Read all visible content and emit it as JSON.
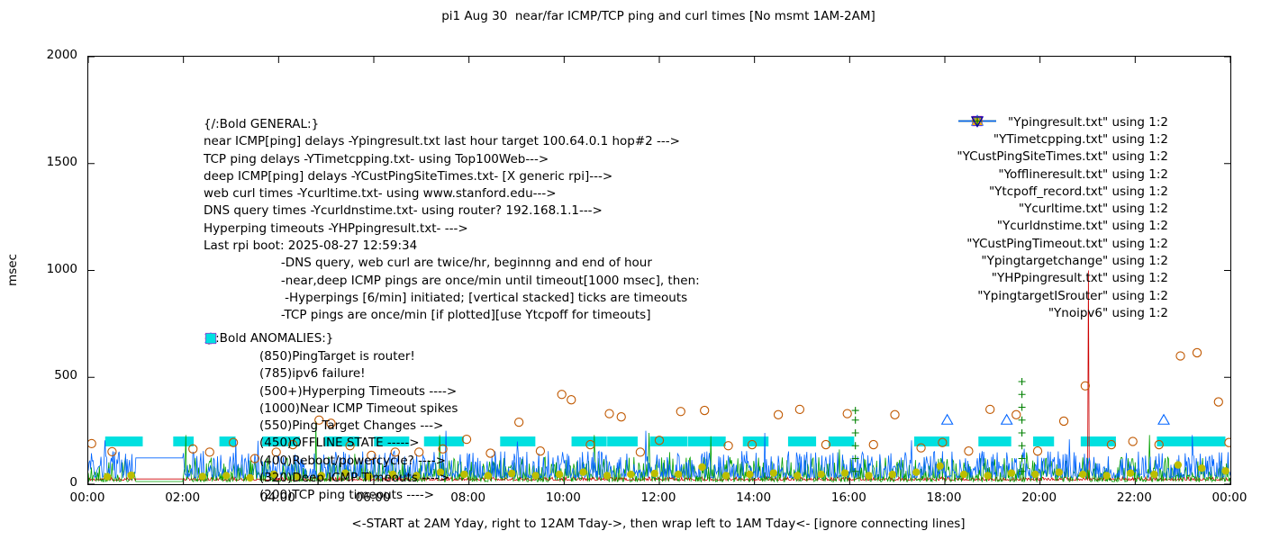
{
  "title": "pi1 Aug 30  near/far ICMP/TCP ping and curl times [No msmt 1AM-2AM]",
  "ylabel": "msec",
  "xlabel": "<-START at 2AM Yday, right to 12AM Tday->, then wrap left to 1AM Tday<- [ignore connecting lines]",
  "general_lines": [
    "{/:Bold GENERAL:}",
    "near ICMP[ping] delays -Ypingresult.txt last hour target 100.64.0.1 hop#2 --->",
    "TCP ping delays -YTimetcpping.txt- using Top100Web--->",
    "deep ICMP[ping] delays -YCustPingSiteTimes.txt- [X generic rpi]--->",
    "web curl times -Ycurltime.txt- using www.stanford.edu--->",
    "DNS query times -Ycurldnstime.txt- using router? 192.168.1.1--->",
    "Hyperping timeouts -YHPpingresult.txt- --->",
    "Last rpi boot: 2025-08-27 12:59:34",
    "                    -DNS query, web curl are twice/hr, beginnng and end of hour",
    "                    -near,deep ICMP pings are once/min until timeout[1000 msec], then:",
    "                     -Hyperpings [6/min] initiated; [vertical stacked] ticks are timeouts",
    "                    -TCP pings are once/min [if plotted][use Ytcpoff for timeouts]"
  ],
  "anomalies_title": "{/:Bold ANOMALIES:}",
  "anomalies": [
    {
      "marker": "triangle-down-open",
      "color": "#c47aff",
      "label": "(850)PingTarget is router!"
    },
    {
      "marker": "triangle-down-open",
      "color": "#0000a0",
      "label": "(785)ipv6 failure!"
    },
    {
      "marker": "plus",
      "color": "#008000",
      "label": "(500+)Hyperping Timeouts ---->"
    },
    {
      "marker": "none",
      "color": "#000000",
      "label": "(1000)Near ICMP Timeout spikes"
    },
    {
      "marker": "triangle-up-filled",
      "color": "#ffa800",
      "label": "(550)Ping Target Changes --->"
    },
    {
      "marker": "square-open",
      "color": "#cc00cc",
      "label": "(450)OFFLINE STATE ----->"
    },
    {
      "marker": "triangle-up-open",
      "color": "#555555",
      "label": "(400)Reboot/powercycle? ---->"
    },
    {
      "marker": "triangle-up-open",
      "color": "#0064ff",
      "label": "(320)Deep ICMP Timeouts ---->"
    },
    {
      "marker": "square-filled",
      "color": "#00e0e0",
      "label": "(200)TCP ping timeouts ---->"
    }
  ],
  "legend": [
    {
      "label": "\"Ypingresult.txt\" using 1:2",
      "sample": "line",
      "color": "#cc0000"
    },
    {
      "label": "\"YTimetcpping.txt\" using 1:2",
      "sample": "line",
      "color": "#00a000"
    },
    {
      "label": "\"YCustPingSiteTimes.txt\" using 1:2",
      "sample": "line",
      "color": "#0064ff"
    },
    {
      "label": "\"Yofflineresult.txt\" using 1:2",
      "sample": "square-open",
      "color": "#cc00cc"
    },
    {
      "label": "\"Ytcpoff_record.txt\" using 1:2",
      "sample": "square-filled",
      "color": "#00e0e0"
    },
    {
      "label": "\"Ycurltime.txt\" using 1:2",
      "sample": "circle-open",
      "color": "#c05800"
    },
    {
      "label": "\"Ycurldnstime.txt\" using 1:2",
      "sample": "circle-filled",
      "color": "#bcbe00"
    },
    {
      "label": "\"YCustPingTimeout.txt\" using 1:2",
      "sample": "triangle-up-open",
      "color": "#0064ff"
    },
    {
      "label": "\"Ypingtargetchange\" using 1:2",
      "sample": "triangle-up-filled",
      "color": "#ffa800"
    },
    {
      "label": "\"YHPpingresult.txt\" using 1:2",
      "sample": "plus",
      "color": "#008000"
    },
    {
      "label": "\"YpingtargetISrouter\" using 1:2",
      "sample": "triangle-down-open",
      "color": "#c47aff"
    },
    {
      "label": "\"Ynoipv6\" using 1:2",
      "sample": "triangle-down-open",
      "color": "#0000a0"
    }
  ],
  "chart_data": {
    "type": "line",
    "title": "pi1 Aug 30  near/far ICMP/TCP ping and curl times [No msmt 1AM-2AM]",
    "xlabel": "<-START at 2AM Yday, right to 12AM Tday->, then wrap left to 1AM Tday<- [ignore connecting lines]",
    "ylabel": "msec",
    "ylim": [
      0,
      2000
    ],
    "yticks": [
      0,
      500,
      1000,
      1500,
      2000
    ],
    "xticks": [
      {
        "h": 0,
        "label": "00:00"
      },
      {
        "h": 2,
        "label": "02:00"
      },
      {
        "h": 4,
        "label": "04:00"
      },
      {
        "h": 6,
        "label": "06:00"
      },
      {
        "h": 8,
        "label": "08:00"
      },
      {
        "h": 10,
        "label": "10:00"
      },
      {
        "h": 12,
        "label": "12:00"
      },
      {
        "h": 14,
        "label": "14:00"
      },
      {
        "h": 16,
        "label": "16:00"
      },
      {
        "h": 18,
        "label": "18:00"
      },
      {
        "h": 20,
        "label": "20:00"
      },
      {
        "h": 22,
        "label": "22:00"
      },
      {
        "h": 24,
        "label": "00:00"
      }
    ],
    "grid": false,
    "legend_position": "top-right-inside",
    "gap_hours": [
      1,
      2
    ],
    "noisy_series": [
      {
        "name": "Ypingresult.txt",
        "color": "#cc0000",
        "base": 18,
        "amp": 16,
        "seed": 11,
        "spikes": [
          [
            21.02,
            1000
          ]
        ]
      },
      {
        "name": "YTimetcpping.txt",
        "color": "#00a000",
        "base": 12,
        "amp": 115,
        "seed": 22,
        "spikes": [
          [
            2.05,
            230
          ],
          [
            4.78,
            295
          ],
          [
            7.38,
            230
          ],
          [
            10.63,
            230
          ],
          [
            11.78,
            240
          ],
          [
            13.08,
            225
          ],
          [
            22.3,
            230
          ]
        ]
      },
      {
        "name": "YCustPingSiteTimes.txt",
        "color": "#0064ff",
        "base": 30,
        "amp": 125,
        "seed": 33,
        "spikes": [
          [
            0.35,
            205
          ],
          [
            3.1,
            210
          ],
          [
            7.52,
            250
          ],
          [
            9.02,
            200
          ],
          [
            11.72,
            250
          ],
          [
            14.22,
            240
          ],
          [
            17.3,
            205
          ],
          [
            20.62,
            210
          ],
          [
            23.2,
            230
          ]
        ]
      }
    ],
    "bar_series": {
      "name": "Ytcpoff_record.txt",
      "color": "#00e0e0",
      "y": 200,
      "segments": [
        [
          0.45,
          1.05
        ],
        [
          1.88,
          2.12
        ],
        [
          2.85,
          3.0
        ],
        [
          3.75,
          4.35
        ],
        [
          5.05,
          5.6
        ],
        [
          6.1,
          6.65
        ],
        [
          7.15,
          7.8
        ],
        [
          8.75,
          9.3
        ],
        [
          10.25,
          10.8
        ],
        [
          11.0,
          11.45
        ],
        [
          11.9,
          12.5
        ],
        [
          12.7,
          13.3
        ],
        [
          13.85,
          14.2
        ],
        [
          14.8,
          15.2
        ],
        [
          15.65,
          16.0
        ],
        [
          17.45,
          18.0
        ],
        [
          18.8,
          19.3
        ],
        [
          19.95,
          20.2
        ],
        [
          20.95,
          21.5
        ],
        [
          22.55,
          23.1
        ],
        [
          23.3,
          23.8
        ]
      ]
    },
    "marker_series": [
      {
        "name": "Ycurltime.txt",
        "marker": "circle-open",
        "color": "#c05800",
        "size": 4.6,
        "points": [
          [
            0.07,
            190
          ],
          [
            0.5,
            152
          ],
          [
            2.2,
            165
          ],
          [
            2.55,
            150
          ],
          [
            3.05,
            195
          ],
          [
            3.5,
            120
          ],
          [
            3.95,
            150
          ],
          [
            4.3,
            185
          ],
          [
            4.85,
            300
          ],
          [
            5.1,
            285
          ],
          [
            5.5,
            180
          ],
          [
            5.95,
            135
          ],
          [
            6.45,
            150
          ],
          [
            6.95,
            150
          ],
          [
            7.45,
            165
          ],
          [
            7.95,
            210
          ],
          [
            8.45,
            145
          ],
          [
            9.05,
            290
          ],
          [
            9.5,
            155
          ],
          [
            9.95,
            420
          ],
          [
            10.15,
            395
          ],
          [
            10.55,
            185
          ],
          [
            10.95,
            330
          ],
          [
            11.2,
            315
          ],
          [
            11.6,
            150
          ],
          [
            12.0,
            205
          ],
          [
            12.45,
            340
          ],
          [
            12.95,
            345
          ],
          [
            13.45,
            180
          ],
          [
            13.95,
            185
          ],
          [
            14.5,
            325
          ],
          [
            14.95,
            350
          ],
          [
            15.5,
            185
          ],
          [
            15.95,
            330
          ],
          [
            16.5,
            185
          ],
          [
            16.95,
            325
          ],
          [
            17.5,
            170
          ],
          [
            17.95,
            195
          ],
          [
            18.5,
            155
          ],
          [
            18.95,
            350
          ],
          [
            19.5,
            325
          ],
          [
            19.95,
            155
          ],
          [
            20.5,
            295
          ],
          [
            20.95,
            460
          ],
          [
            21.5,
            185
          ],
          [
            21.95,
            200
          ],
          [
            22.5,
            185
          ],
          [
            22.95,
            600
          ],
          [
            23.3,
            615
          ],
          [
            23.75,
            385
          ],
          [
            23.97,
            195
          ]
        ]
      },
      {
        "name": "Ycurldnstime.txt",
        "marker": "circle-filled",
        "color": "#bcbe00",
        "size": 4.2,
        "points": [
          [
            0.4,
            35
          ],
          [
            0.9,
            42
          ],
          [
            2.4,
            36
          ],
          [
            2.9,
            40
          ],
          [
            3.4,
            30
          ],
          [
            3.9,
            46
          ],
          [
            4.4,
            36
          ],
          [
            4.9,
            40
          ],
          [
            5.4,
            52
          ],
          [
            5.9,
            36
          ],
          [
            6.4,
            46
          ],
          [
            6.9,
            40
          ],
          [
            7.4,
            56
          ],
          [
            7.9,
            46
          ],
          [
            8.4,
            40
          ],
          [
            8.9,
            50
          ],
          [
            9.4,
            40
          ],
          [
            9.9,
            46
          ],
          [
            10.4,
            56
          ],
          [
            10.9,
            40
          ],
          [
            11.4,
            46
          ],
          [
            11.9,
            50
          ],
          [
            12.4,
            46
          ],
          [
            12.9,
            80
          ],
          [
            13.4,
            40
          ],
          [
            13.9,
            46
          ],
          [
            14.4,
            52
          ],
          [
            14.9,
            40
          ],
          [
            15.4,
            46
          ],
          [
            15.9,
            52
          ],
          [
            16.4,
            40
          ],
          [
            16.9,
            46
          ],
          [
            17.4,
            56
          ],
          [
            17.9,
            85
          ],
          [
            18.4,
            46
          ],
          [
            18.9,
            40
          ],
          [
            19.4,
            52
          ],
          [
            19.9,
            46
          ],
          [
            20.4,
            56
          ],
          [
            20.9,
            46
          ],
          [
            21.4,
            40
          ],
          [
            21.9,
            52
          ],
          [
            22.4,
            46
          ],
          [
            22.9,
            90
          ],
          [
            23.4,
            75
          ],
          [
            23.9,
            62
          ]
        ]
      },
      {
        "name": "YCustPingTimeout.txt",
        "marker": "triangle-up-open",
        "color": "#0064ff",
        "size": 6,
        "points": [
          [
            18.05,
            300
          ],
          [
            19.3,
            300
          ],
          [
            22.6,
            300
          ]
        ]
      },
      {
        "name": "YHPpingresult.txt",
        "marker": "plus",
        "color": "#008000",
        "size": 4,
        "points": [
          [
            16.12,
            60
          ],
          [
            16.12,
            120
          ],
          [
            16.12,
            180
          ],
          [
            16.12,
            240
          ],
          [
            16.12,
            300
          ],
          [
            16.12,
            345
          ],
          [
            19.62,
            60
          ],
          [
            19.62,
            120
          ],
          [
            19.62,
            180
          ],
          [
            19.62,
            240
          ],
          [
            19.62,
            300
          ],
          [
            19.62,
            360
          ],
          [
            19.62,
            420
          ],
          [
            19.62,
            480
          ]
        ]
      }
    ]
  }
}
